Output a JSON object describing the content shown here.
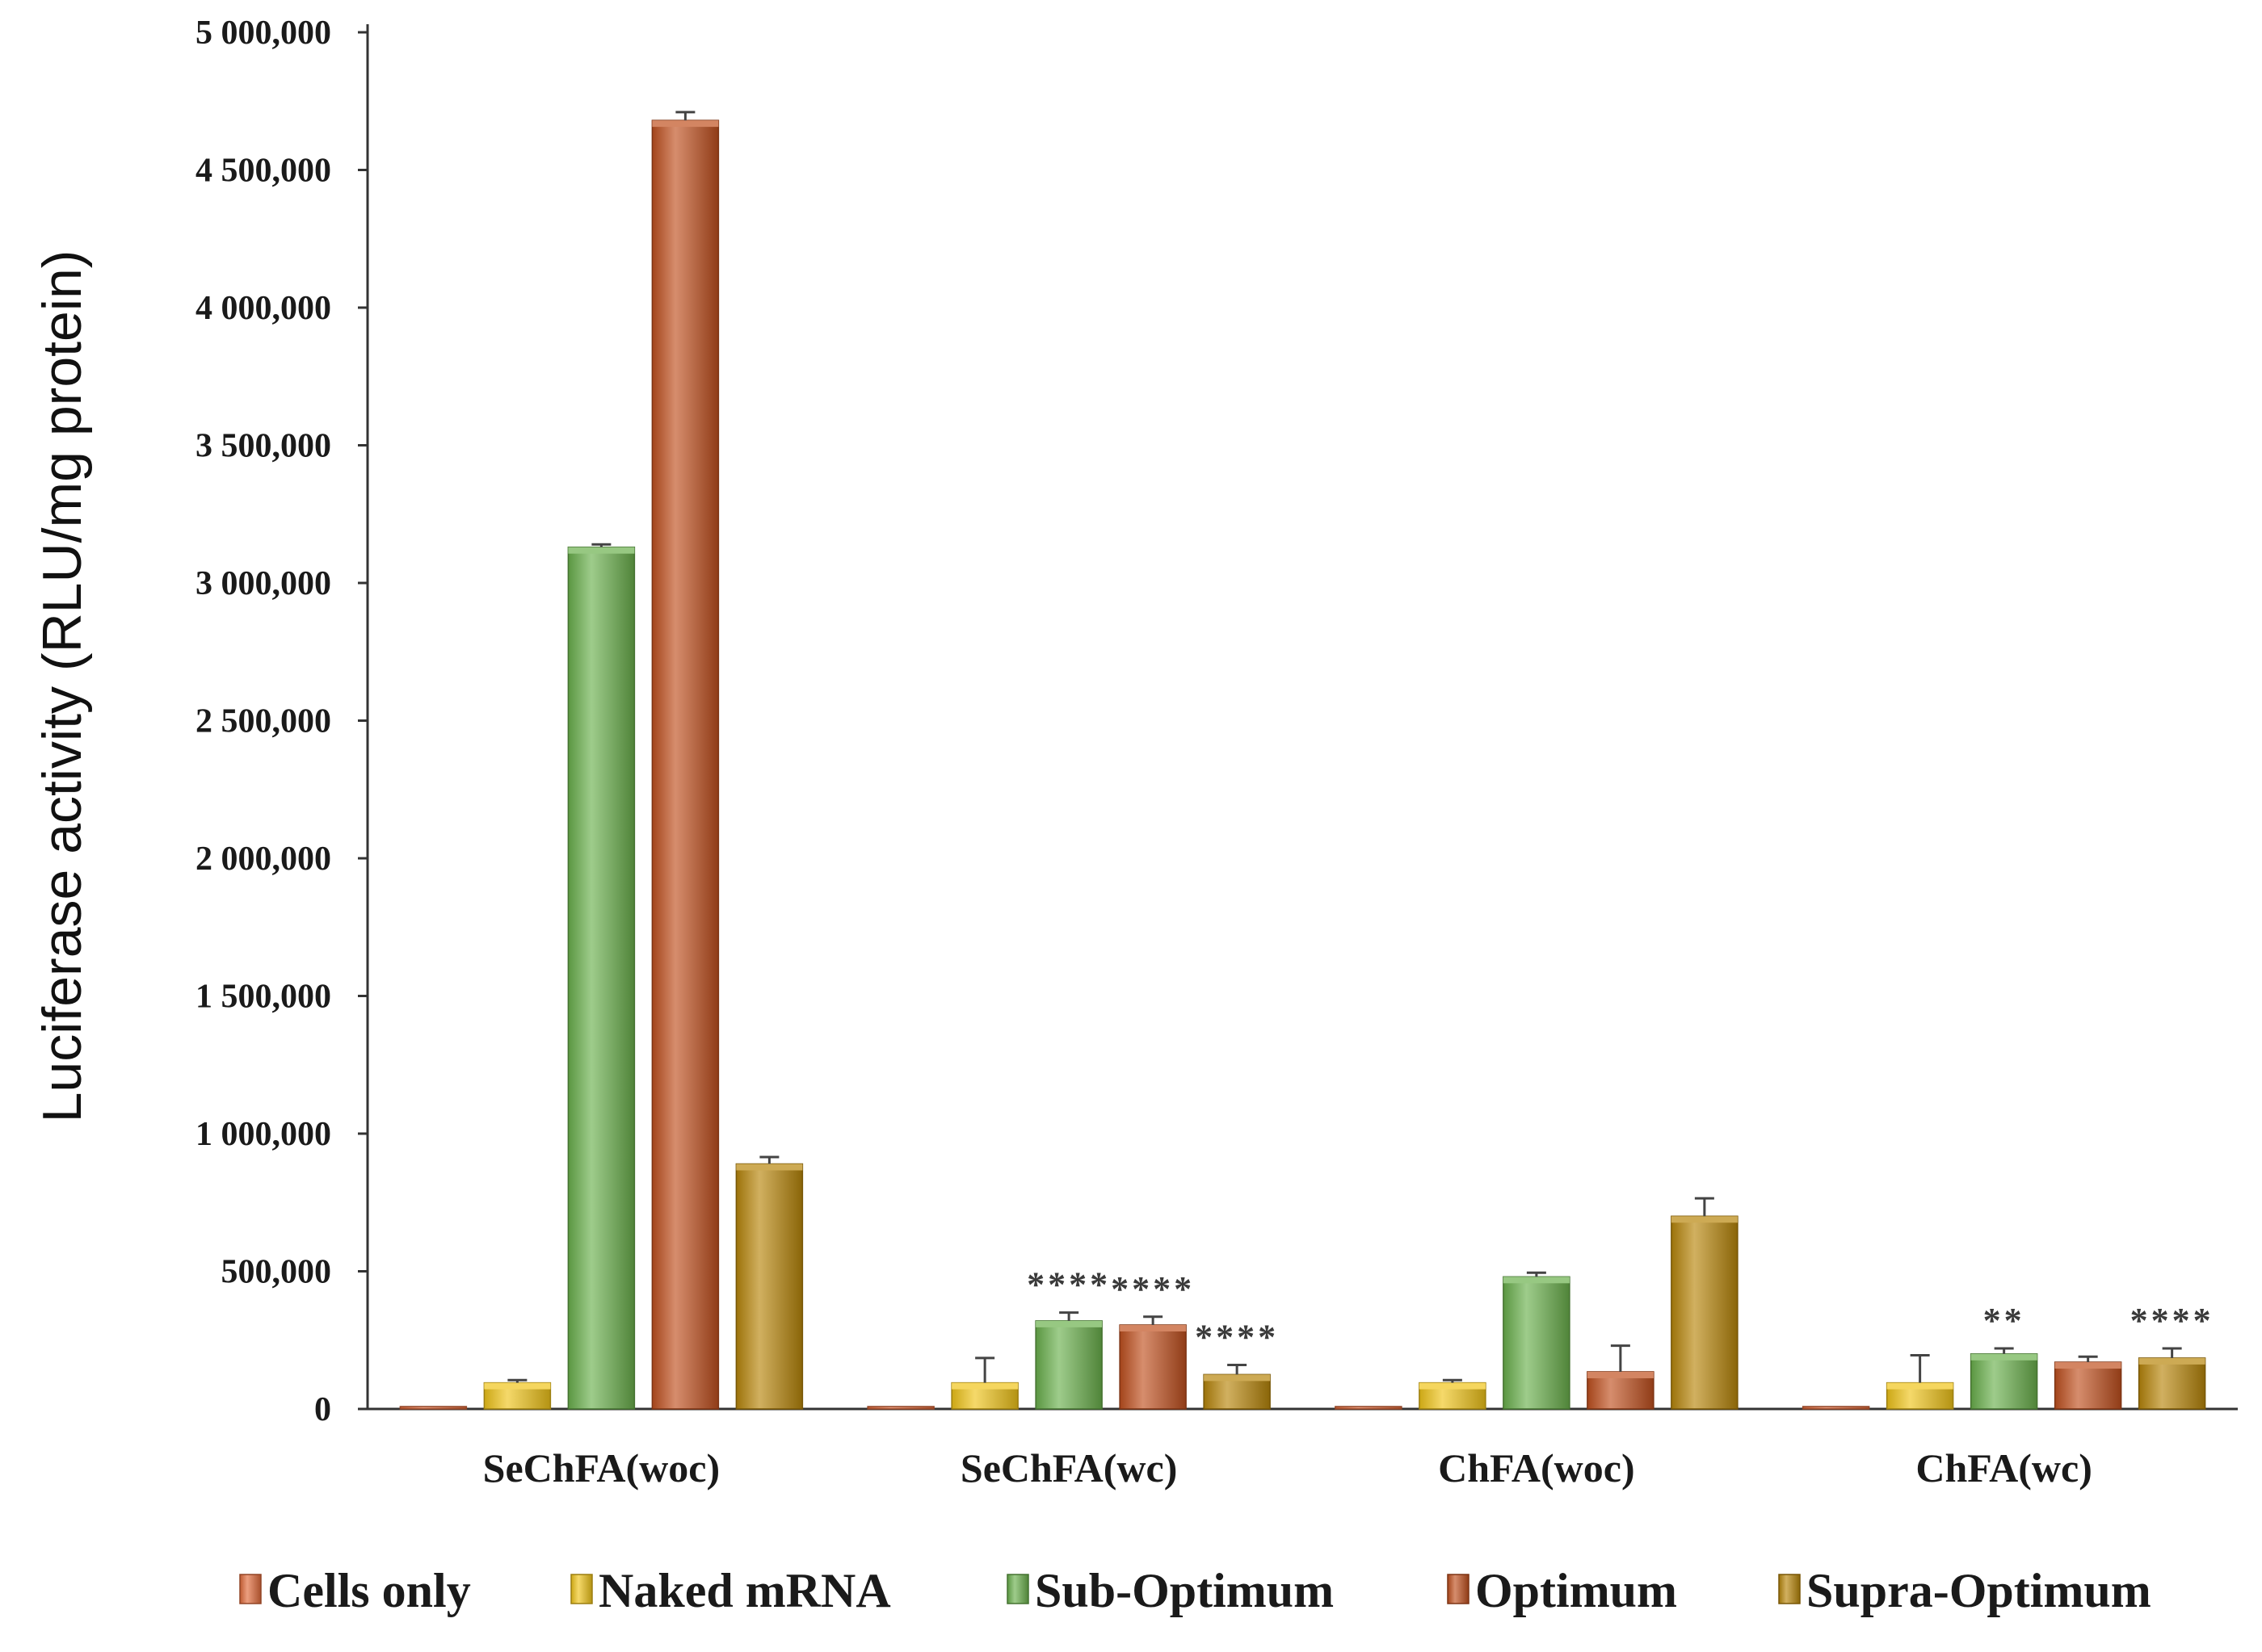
{
  "chart_data": {
    "type": "bar",
    "title": "",
    "xlabel": "",
    "ylabel": "Luciferase activity (RLU/mg protein)",
    "ylim": [
      0,
      5000000
    ],
    "yticks": [
      0,
      500000,
      1000000,
      1500000,
      2000000,
      2500000,
      3000000,
      3500000,
      4000000,
      4500000,
      5000000
    ],
    "ytick_labels": [
      "0",
      "500,000",
      "1 000,000",
      "1 500,000",
      "2 000,000",
      "2 500,000",
      "3 000,000",
      "3 500,000",
      "4 000,000",
      "4 500,000",
      "5 000,000"
    ],
    "categories": [
      "SeChFA(woc)",
      "SeChFA(wc)",
      "ChFA(woc)",
      "ChFA(wc)"
    ],
    "legend_position": "bottom",
    "series": [
      {
        "name": "Cells only",
        "color": "#e06a3a",
        "values": [
          5000,
          5000,
          5000,
          5000
        ],
        "errors": [
          0,
          0,
          0,
          0
        ],
        "sig": [
          "",
          "",
          "",
          ""
        ]
      },
      {
        "name": "Naked mRNA",
        "color": "#f0c419",
        "values": [
          95000,
          95000,
          95000,
          95000
        ],
        "errors": [
          10000,
          90000,
          10000,
          100000
        ],
        "sig": [
          "",
          "",
          "",
          ""
        ]
      },
      {
        "name": "Sub-Optimum",
        "color": "#6ab04c",
        "values": [
          3130000,
          320000,
          480000,
          200000
        ],
        "errors": [
          10000,
          30000,
          15000,
          20000
        ],
        "sig": [
          "",
          "****",
          "",
          "**"
        ]
      },
      {
        "name": "Optimum",
        "color": "#c0501f",
        "values": [
          4680000,
          305000,
          135000,
          170000
        ],
        "errors": [
          30000,
          30000,
          95000,
          20000
        ],
        "sig": [
          "",
          "****",
          "",
          ""
        ]
      },
      {
        "name": "Supra-Optimum",
        "color": "#b8860b",
        "values": [
          890000,
          125000,
          700000,
          185000
        ],
        "errors": [
          25000,
          35000,
          65000,
          35000
        ],
        "sig": [
          "",
          "****",
          "",
          "****"
        ]
      }
    ]
  }
}
